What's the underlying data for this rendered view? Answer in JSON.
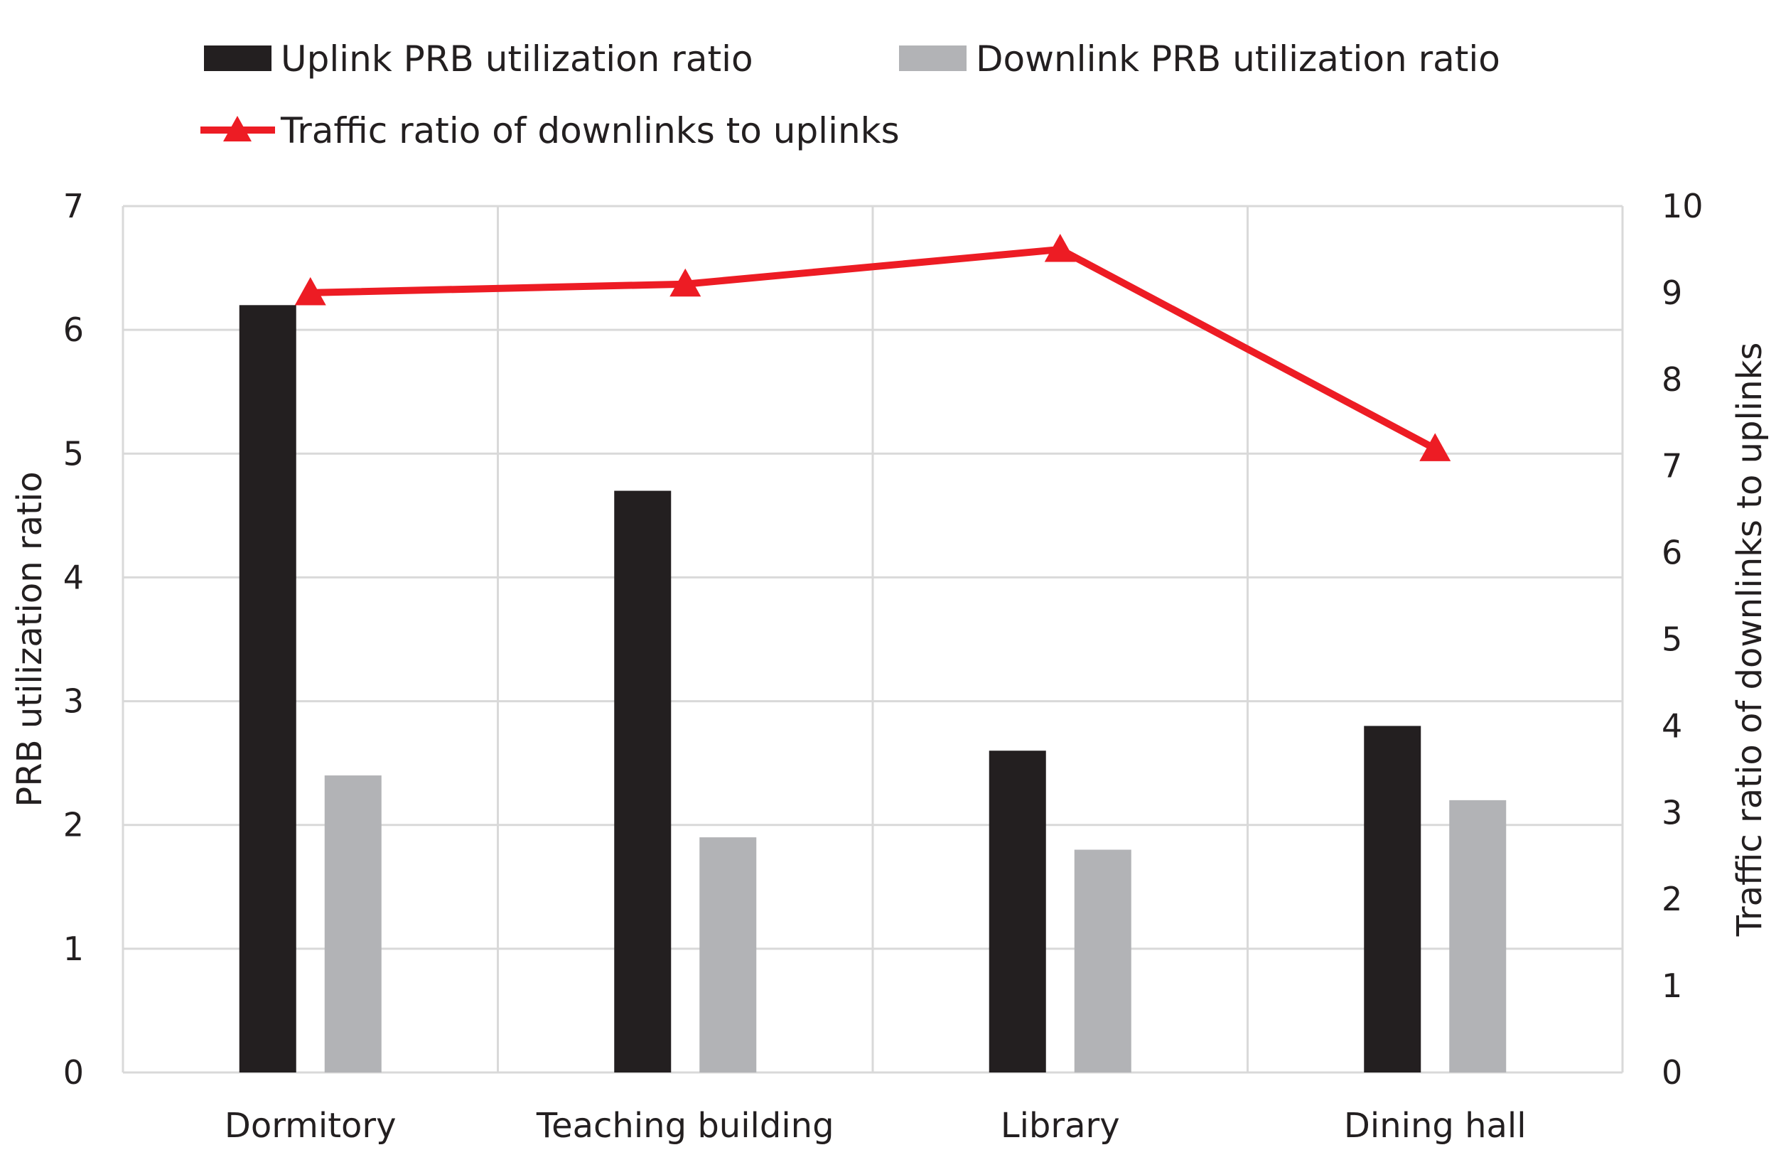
{
  "chart_data": {
    "type": "bar",
    "categories": [
      "Dormitory",
      "Teaching building",
      "Library",
      "Dining hall"
    ],
    "series": [
      {
        "name": "Uplink PRB utilization ratio",
        "type": "bar",
        "axis": "left",
        "color": "#231f20",
        "values": [
          6.2,
          4.7,
          2.6,
          2.8
        ]
      },
      {
        "name": "Downlink PRB utilization ratio",
        "type": "bar",
        "axis": "left",
        "color": "#b2b3b6",
        "values": [
          2.4,
          1.9,
          1.8,
          2.2
        ]
      },
      {
        "name": "Traffic ratio of downlinks to uplinks",
        "type": "line",
        "axis": "right",
        "color": "#ed1c24",
        "marker": "triangle",
        "values": [
          9.0,
          9.1,
          9.5,
          7.2
        ]
      }
    ],
    "ylabel": "PRB utilization ratio",
    "y2label": "Traffic ratio of downlinks to uplinks",
    "ylim": [
      0,
      7
    ],
    "y2lim": [
      0,
      10
    ],
    "yticks": [
      0,
      1,
      2,
      3,
      4,
      5,
      6,
      7
    ],
    "y2ticks": [
      0,
      1,
      2,
      3,
      4,
      5,
      6,
      7,
      8,
      9,
      10
    ],
    "grid": true,
    "legend_position": "top"
  }
}
